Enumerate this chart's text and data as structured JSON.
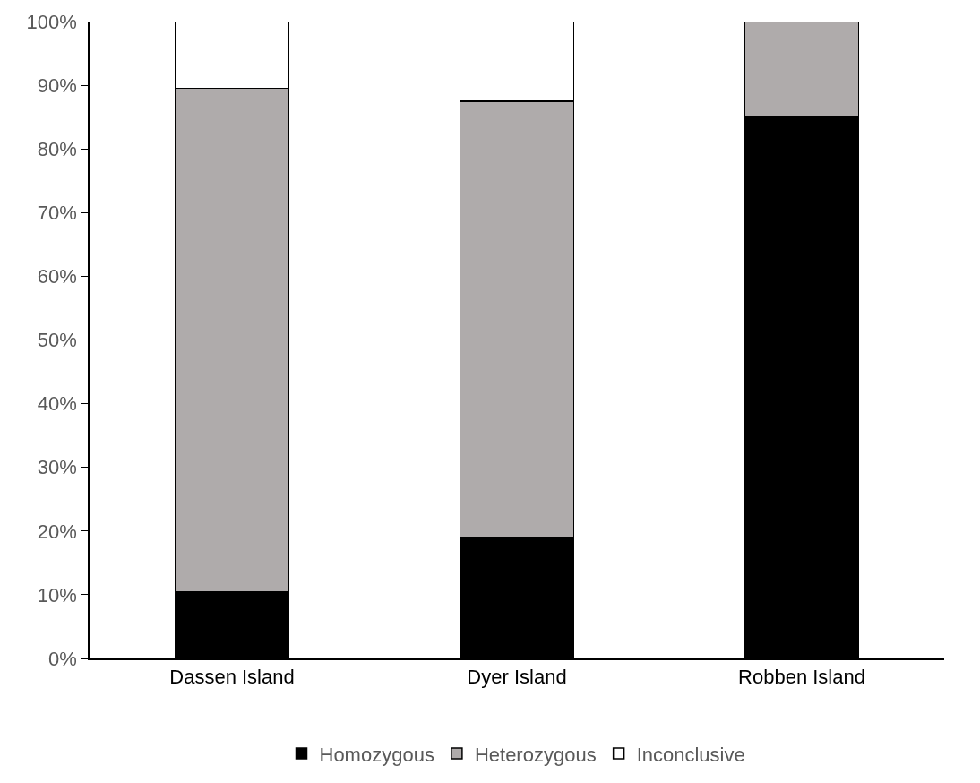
{
  "chart_data": {
    "type": "bar",
    "stacked": true,
    "categories": [
      "Dassen Island",
      "Dyer Island",
      "Robben Island"
    ],
    "series": [
      {
        "name": "Homozygous",
        "color": "#000000",
        "values": [
          10.5,
          19,
          85
        ]
      },
      {
        "name": "Heterozygous",
        "color": "#afabab",
        "values": [
          79,
          68.5,
          15
        ]
      },
      {
        "name": "Inconclusive",
        "color": "#ffffff",
        "values": [
          10.5,
          12.5,
          null
        ]
      }
    ],
    "ylim": [
      0,
      100
    ],
    "yticks": [
      {
        "value": 0,
        "label": "0%"
      },
      {
        "value": 10,
        "label": "10%"
      },
      {
        "value": 20,
        "label": "20%"
      },
      {
        "value": 30,
        "label": "30%"
      },
      {
        "value": 40,
        "label": "40%"
      },
      {
        "value": 50,
        "label": "50%"
      },
      {
        "value": 60,
        "label": "60%"
      },
      {
        "value": 70,
        "label": "70%"
      },
      {
        "value": 80,
        "label": "80%"
      },
      {
        "value": 90,
        "label": "90%"
      },
      {
        "value": 100,
        "label": "100%"
      }
    ],
    "legend": "bottom"
  }
}
